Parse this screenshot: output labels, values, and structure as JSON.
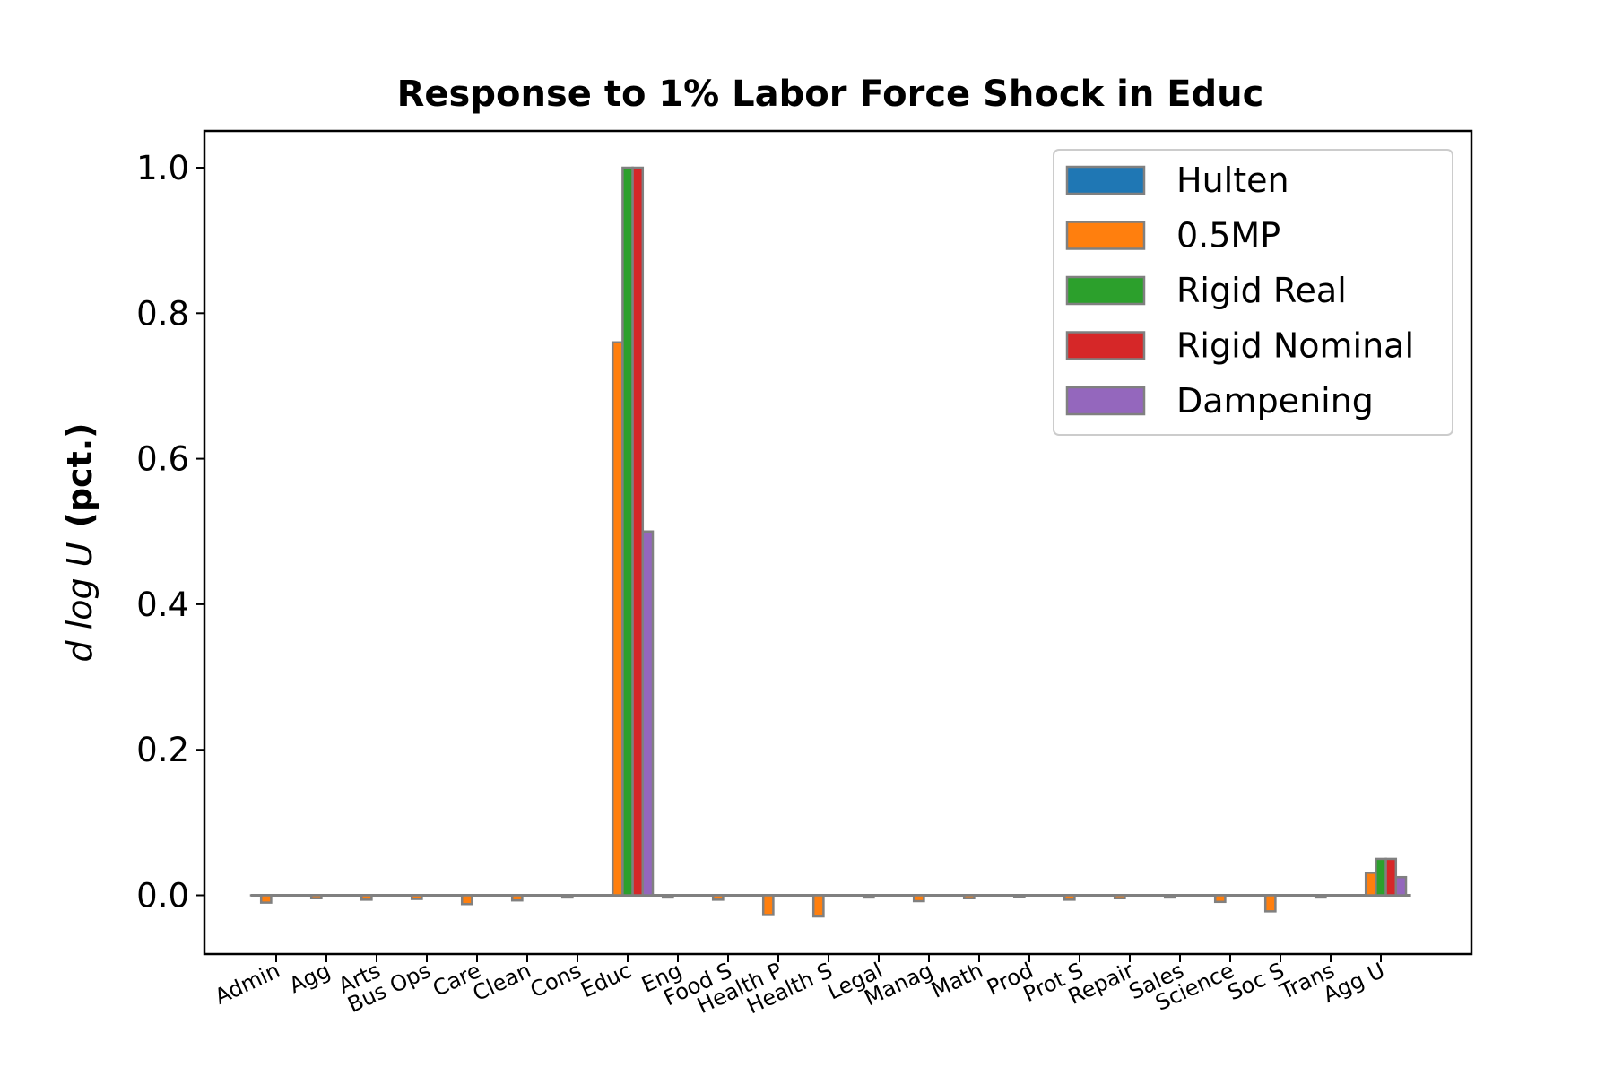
{
  "chart_data": {
    "type": "bar",
    "title": "Response to 1% Labor Force Shock in Educ",
    "ylabel_math": "d log U",
    "ylabel_suffix": "(pct.)",
    "xlabel": "",
    "ylim": [
      -0.08,
      1.05
    ],
    "yticks": [
      0.0,
      0.2,
      0.4,
      0.6,
      0.8,
      1.0
    ],
    "ytick_labels": [
      "0.0",
      "0.2",
      "0.4",
      "0.6",
      "0.8",
      "1.0"
    ],
    "grid": false,
    "legend_position": "top-right",
    "categories": [
      "Admin",
      "Agg",
      "Arts",
      "Bus Ops",
      "Care",
      "Clean",
      "Cons",
      "Educ",
      "Eng",
      "Food S",
      "Health P",
      "Health S",
      "Legal",
      "Manag",
      "Math",
      "Prod",
      "Prot S",
      "Repair",
      "Sales",
      "Science",
      "Soc S",
      "Trans",
      "Agg U"
    ],
    "series": [
      {
        "name": "Hulten",
        "color": "#1f77b4",
        "values": [
          0,
          0,
          0,
          0,
          0,
          0,
          0,
          0,
          0,
          0,
          0,
          0,
          0,
          0,
          0,
          0,
          0,
          0,
          0,
          0,
          0,
          0,
          0
        ]
      },
      {
        "name": "0.5MP",
        "color": "#ff7f0e",
        "values": [
          -0.01,
          -0.004,
          -0.006,
          -0.005,
          -0.012,
          -0.007,
          -0.003,
          0.76,
          -0.003,
          -0.006,
          -0.027,
          -0.029,
          -0.003,
          -0.008,
          -0.004,
          -0.002,
          -0.006,
          -0.004,
          -0.003,
          -0.009,
          -0.022,
          -0.003,
          0.031
        ]
      },
      {
        "name": "Rigid Real",
        "color": "#2ca02c",
        "values": [
          0,
          0,
          0,
          0,
          0,
          0,
          0,
          1.0,
          0,
          0,
          0,
          0,
          0,
          0,
          0,
          0,
          0,
          0,
          0,
          0,
          0,
          0,
          0.05
        ]
      },
      {
        "name": "Rigid Nominal",
        "color": "#d62728",
        "values": [
          0,
          0,
          0,
          0,
          0,
          0,
          0,
          1.0,
          0,
          0,
          0,
          0,
          0,
          0,
          0,
          0,
          0,
          0,
          0,
          0,
          0,
          0,
          0.05
        ]
      },
      {
        "name": "Dampening",
        "color": "#9467bd",
        "values": [
          0,
          0,
          0,
          0,
          0,
          0,
          0,
          0.5,
          0,
          0,
          0,
          0,
          0,
          0,
          0,
          0,
          0,
          0,
          0,
          0,
          0,
          0,
          0.025
        ]
      }
    ]
  }
}
